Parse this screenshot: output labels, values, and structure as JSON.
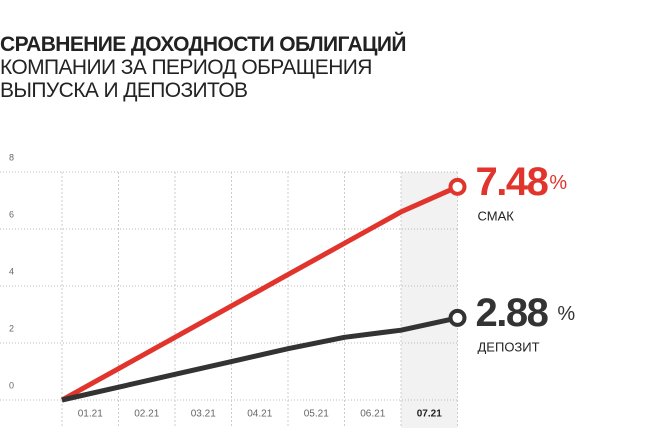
{
  "chart_data": {
    "type": "line",
    "title": "СРАВНЕНИЕ ДОХОДНОСТИ ОБЛИГАЦИЙ",
    "subtitle": "КОМПАНИИ ЗА ПЕРИОД ОБРАЩЕНИЯ ВЫПУСКА И ДЕПОЗИТОВ",
    "categories": [
      null,
      "01.21",
      "02.21",
      "03.21",
      "04.21",
      "05.21",
      "06.21",
      "07.21"
    ],
    "unit": "%",
    "series": [
      {
        "name": "СМАК",
        "color": "#e0342c",
        "values": [
          0,
          1.1,
          2.2,
          3.3,
          4.4,
          5.5,
          6.6,
          7.48
        ]
      },
      {
        "name": "ДЕПОЗИТ",
        "color": "#333333",
        "values": [
          0,
          0.45,
          0.9,
          1.35,
          1.8,
          2.2,
          2.45,
          2.88
        ]
      }
    ],
    "ylim": [
      0,
      8
    ],
    "yticks": [
      0,
      2,
      4,
      6,
      8
    ],
    "grid": true
  }
}
